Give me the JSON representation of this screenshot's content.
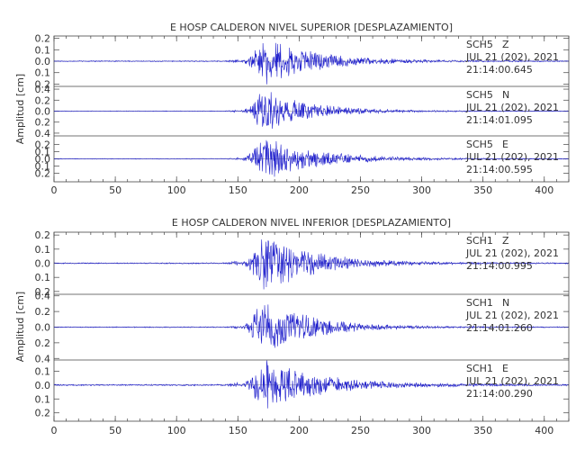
{
  "figure": {
    "ylabel": "Amplitud [cm]",
    "trace_color": "#1f1fcc",
    "axis_color": "#444444"
  },
  "chart_data": [
    {
      "type": "line",
      "title": "E HOSP CALDERON NIVEL SUPERIOR [DESPLAZAMIENTO]",
      "xlabel": "",
      "ylabel": "Amplitud [cm]",
      "xlim": [
        0,
        420
      ],
      "x_ticks": [
        0,
        50,
        100,
        150,
        200,
        250,
        300,
        350,
        400
      ],
      "series": [
        {
          "name": "SCH5 Z",
          "station": "SCH5",
          "component": "Z",
          "date": "JUL 21 (202), 2021",
          "time": "21:14:00.645",
          "ylim": [
            -0.22,
            0.22
          ],
          "y_ticks": [
            -0.2,
            -0.1,
            0.0,
            0.1,
            0.2
          ],
          "y_tick_labels": [
            "0.2",
            "0.1",
            "0.0",
            "0.1",
            "0.2"
          ],
          "envelope": {
            "peak_time": 170,
            "peak_amplitude": 0.21,
            "coda_start": 150,
            "coda_end": 300,
            "noise": 0.004
          }
        },
        {
          "name": "SCH5 N",
          "station": "SCH5",
          "component": "N",
          "date": "JUL 21 (202), 2021",
          "time": "21:14:01.095",
          "ylim": [
            -0.45,
            0.45
          ],
          "y_ticks": [
            -0.4,
            -0.2,
            0.0,
            0.2,
            0.4
          ],
          "y_tick_labels": [
            "0.4",
            "0.2",
            "0.0",
            "0.2",
            "0.4"
          ],
          "envelope": {
            "peak_time": 170,
            "peak_amplitude": 0.38,
            "coda_start": 150,
            "coda_end": 290,
            "noise": 0.006
          }
        },
        {
          "name": "SCH5 E",
          "station": "SCH5",
          "component": "E",
          "date": "JUL 21 (202), 2021",
          "time": "21:14:00.595",
          "ylim": [
            -0.32,
            0.32
          ],
          "y_ticks": [
            -0.2,
            -0.1,
            0.0,
            0.1,
            0.2
          ],
          "y_tick_labels": [
            "0.2",
            "0.1",
            "0.0",
            "0.1",
            "0.2"
          ],
          "envelope": {
            "peak_time": 170,
            "peak_amplitude": 0.29,
            "coda_start": 150,
            "coda_end": 310,
            "noise": 0.005
          }
        }
      ]
    },
    {
      "type": "line",
      "title": "E HOSP CALDERON NIVEL INFERIOR [DESPLAZAMIENTO]",
      "xlabel": "",
      "ylabel": "Amplitud [cm]",
      "xlim": [
        0,
        420
      ],
      "x_ticks": [
        0,
        50,
        100,
        150,
        200,
        250,
        300,
        350,
        400
      ],
      "series": [
        {
          "name": "SCH1 Z",
          "station": "SCH1",
          "component": "Z",
          "date": "JUL 21 (202), 2021",
          "time": "21:14:00.995",
          "ylim": [
            -0.22,
            0.22
          ],
          "y_ticks": [
            -0.2,
            -0.1,
            0.0,
            0.1,
            0.2
          ],
          "y_tick_labels": [
            "0.2",
            "0.1",
            "0.0",
            "0.1",
            "0.2"
          ],
          "envelope": {
            "peak_time": 170,
            "peak_amplitude": 0.2,
            "coda_start": 150,
            "coda_end": 300,
            "noise": 0.004
          }
        },
        {
          "name": "SCH1 N",
          "station": "SCH1",
          "component": "N",
          "date": "JUL 21 (202), 2021",
          "time": "21:14:01.260",
          "ylim": [
            -0.42,
            0.42
          ],
          "y_ticks": [
            -0.4,
            -0.2,
            0.0,
            0.2,
            0.4
          ],
          "y_tick_labels": [
            "0.4",
            "0.2",
            "0.0",
            "0.2",
            "0.4"
          ],
          "envelope": {
            "peak_time": 170,
            "peak_amplitude": 0.36,
            "coda_start": 150,
            "coda_end": 290,
            "noise": 0.006
          }
        },
        {
          "name": "SCH1 E",
          "station": "SCH1",
          "component": "E",
          "date": "JUL 21 (202), 2021",
          "time": "21:14:00.290",
          "ylim": [
            -0.26,
            0.18
          ],
          "y_ticks": [
            -0.2,
            -0.1,
            0.0,
            0.1
          ],
          "y_tick_labels": [
            "0.2",
            "0.1",
            "0.0",
            "0.1"
          ],
          "envelope": {
            "peak_time": 170,
            "peak_amplitude": 0.17,
            "coda_start": 150,
            "coda_end": 320,
            "noise": 0.005
          }
        }
      ]
    }
  ]
}
